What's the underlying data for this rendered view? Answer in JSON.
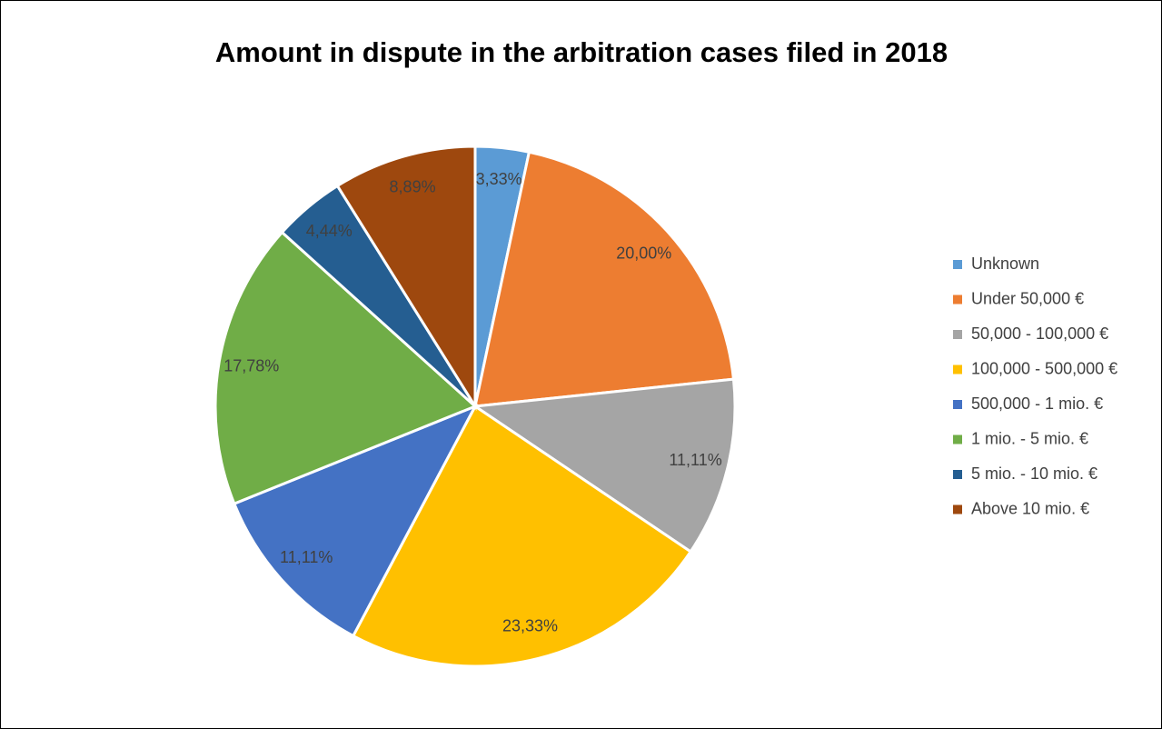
{
  "chart_data": {
    "type": "pie",
    "title": "Amount in dispute in the arbitration cases filed in 2018",
    "categories": [
      "Unknown",
      "Under 50,000 €",
      "50,000 - 100,000 €",
      "100,000 - 500,000 €",
      "500,000 - 1 mio. €",
      "1 mio. - 5 mio. €",
      "5 mio. - 10 mio. €",
      "Above 10 mio. €"
    ],
    "values": [
      3.33,
      20.0,
      11.11,
      23.33,
      11.11,
      17.78,
      4.44,
      8.89
    ],
    "value_labels": [
      "3,33%",
      "20,00%",
      "11,11%",
      "23,33%",
      "11,11%",
      "17,78%",
      "4,44%",
      "8,89%"
    ],
    "colors": [
      "#5b9bd5",
      "#ed7d31",
      "#a5a5a5",
      "#ffc000",
      "#4472c4",
      "#70ad47",
      "#255e91",
      "#9e480e"
    ],
    "legend": "right"
  }
}
